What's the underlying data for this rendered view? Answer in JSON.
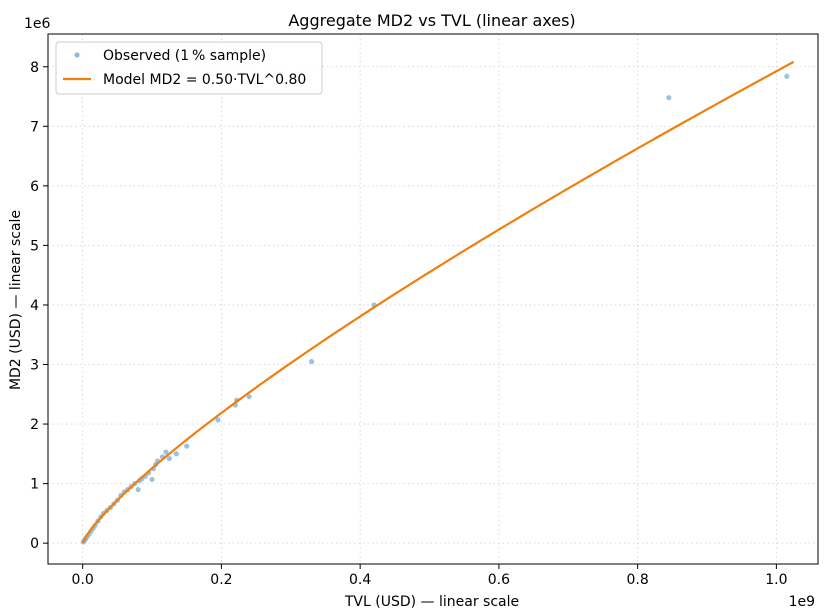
{
  "chart_data": {
    "type": "scatter",
    "title": "Aggregate MD2 vs TVL (linear axes)",
    "xlabel": "TVL (USD)  — linear scale",
    "ylabel": "MD2 (USD)  — linear scale",
    "x_offset_label": "1e9",
    "y_offset_label": "1e6",
    "xlim": [
      -0.05,
      1.06
    ],
    "ylim": [
      -0.35,
      8.55
    ],
    "x_unit_multiplier": 1000000000,
    "y_unit_multiplier": 1000000,
    "xticks": [
      0.0,
      0.2,
      0.4,
      0.6,
      0.8,
      1.0
    ],
    "xtick_labels": [
      "0.0",
      "0.2",
      "0.4",
      "0.6",
      "0.8",
      "1.0"
    ],
    "yticks": [
      0,
      1,
      2,
      3,
      4,
      5,
      6,
      7,
      8
    ],
    "ytick_labels": [
      "0",
      "1",
      "2",
      "3",
      "4",
      "5",
      "6",
      "7",
      "8"
    ],
    "grid": true,
    "legend_position": "top-left",
    "series": [
      {
        "name": "Observed (1 % sample)",
        "kind": "scatter",
        "color": "#8fbcdb",
        "points": [
          [
            0.001,
            0.02
          ],
          [
            0.002,
            0.04
          ],
          [
            0.003,
            0.05
          ],
          [
            0.004,
            0.07
          ],
          [
            0.005,
            0.09
          ],
          [
            0.007,
            0.12
          ],
          [
            0.009,
            0.15
          ],
          [
            0.012,
            0.2
          ],
          [
            0.015,
            0.25
          ],
          [
            0.018,
            0.3
          ],
          [
            0.022,
            0.37
          ],
          [
            0.026,
            0.44
          ],
          [
            0.03,
            0.5
          ],
          [
            0.035,
            0.55
          ],
          [
            0.04,
            0.6
          ],
          [
            0.045,
            0.66
          ],
          [
            0.05,
            0.72
          ],
          [
            0.055,
            0.8
          ],
          [
            0.06,
            0.86
          ],
          [
            0.065,
            0.9
          ],
          [
            0.07,
            0.95
          ],
          [
            0.075,
            1.0
          ],
          [
            0.08,
            0.9
          ],
          [
            0.082,
            1.05
          ],
          [
            0.085,
            1.08
          ],
          [
            0.09,
            1.12
          ],
          [
            0.095,
            1.18
          ],
          [
            0.1,
            1.07
          ],
          [
            0.102,
            1.25
          ],
          [
            0.105,
            1.32
          ],
          [
            0.108,
            1.38
          ],
          [
            0.115,
            1.45
          ],
          [
            0.12,
            1.53
          ],
          [
            0.125,
            1.42
          ],
          [
            0.135,
            1.5
          ],
          [
            0.15,
            1.63
          ],
          [
            0.195,
            2.07
          ],
          [
            0.22,
            2.32
          ],
          [
            0.222,
            2.4
          ],
          [
            0.24,
            2.46
          ],
          [
            0.33,
            3.05
          ],
          [
            0.42,
            4.0
          ],
          [
            0.845,
            7.48
          ],
          [
            1.015,
            7.84
          ]
        ]
      },
      {
        "name": "Model MD2 = 0.50·TVL^0.80",
        "kind": "line",
        "color": "#f07f0e",
        "model": {
          "coefficient": 0.5,
          "exponent": 0.8,
          "x_min": 0.0,
          "x_max": 1.025
        }
      }
    ]
  }
}
